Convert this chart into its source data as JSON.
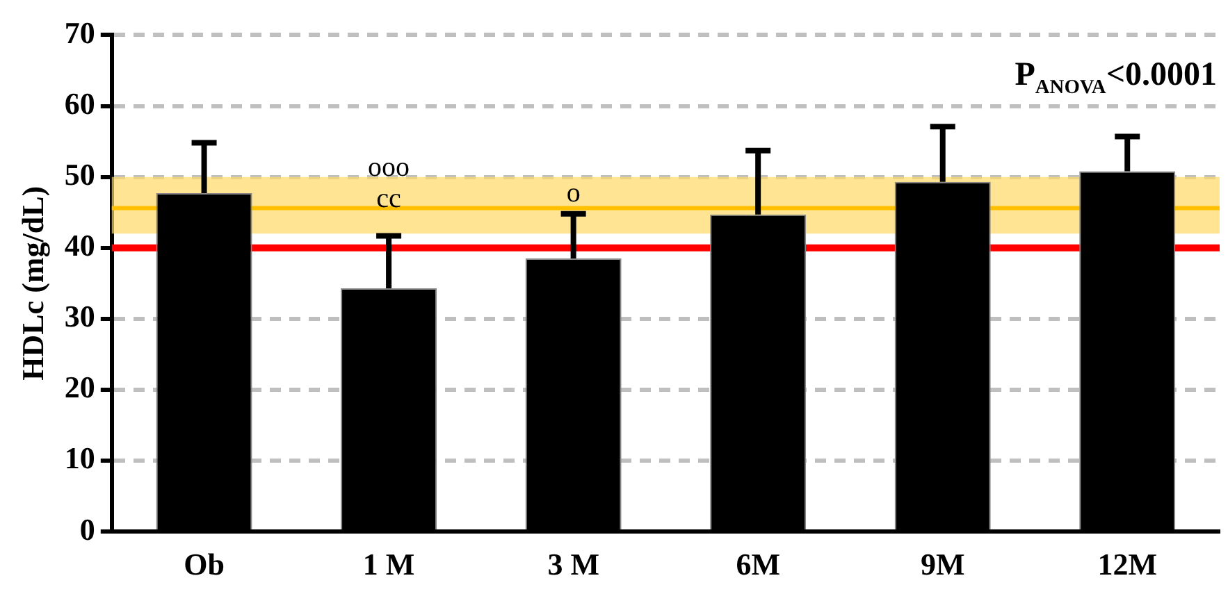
{
  "chart_data": {
    "type": "bar",
    "ylabel": "HDLc (mg/dL)",
    "categories": [
      "Ob",
      "1 M",
      "3 M",
      "6M",
      "9M",
      "12M"
    ],
    "values": [
      47.7,
      34.3,
      38.5,
      44.7,
      49.3,
      50.8
    ],
    "color": "#000000",
    "errors": [
      [
        47.7,
        54.8
      ],
      [
        34.3,
        41.7
      ],
      [
        38.5,
        44.8
      ],
      [
        44.7,
        53.7
      ],
      [
        49.3,
        57.1
      ],
      [
        50.8,
        55.7
      ]
    ],
    "ylim": [
      0,
      70
    ],
    "yticks": [
      0,
      10,
      20,
      30,
      40,
      50,
      60,
      70
    ],
    "grid": "y",
    "legend": false,
    "ref_lines": [
      {
        "axis": "y",
        "value": 40,
        "color": "#ff0000"
      },
      {
        "axis": "y",
        "value": 45.6,
        "color": "#ffc000"
      }
    ],
    "bands": [
      {
        "axis": "y",
        "from": 42,
        "to": 50,
        "color": "#ffd966"
      }
    ],
    "annotations": [
      "P$_{ANOVA}$<0.0001",
      "ooo",
      "cc",
      "o"
    ]
  }
}
